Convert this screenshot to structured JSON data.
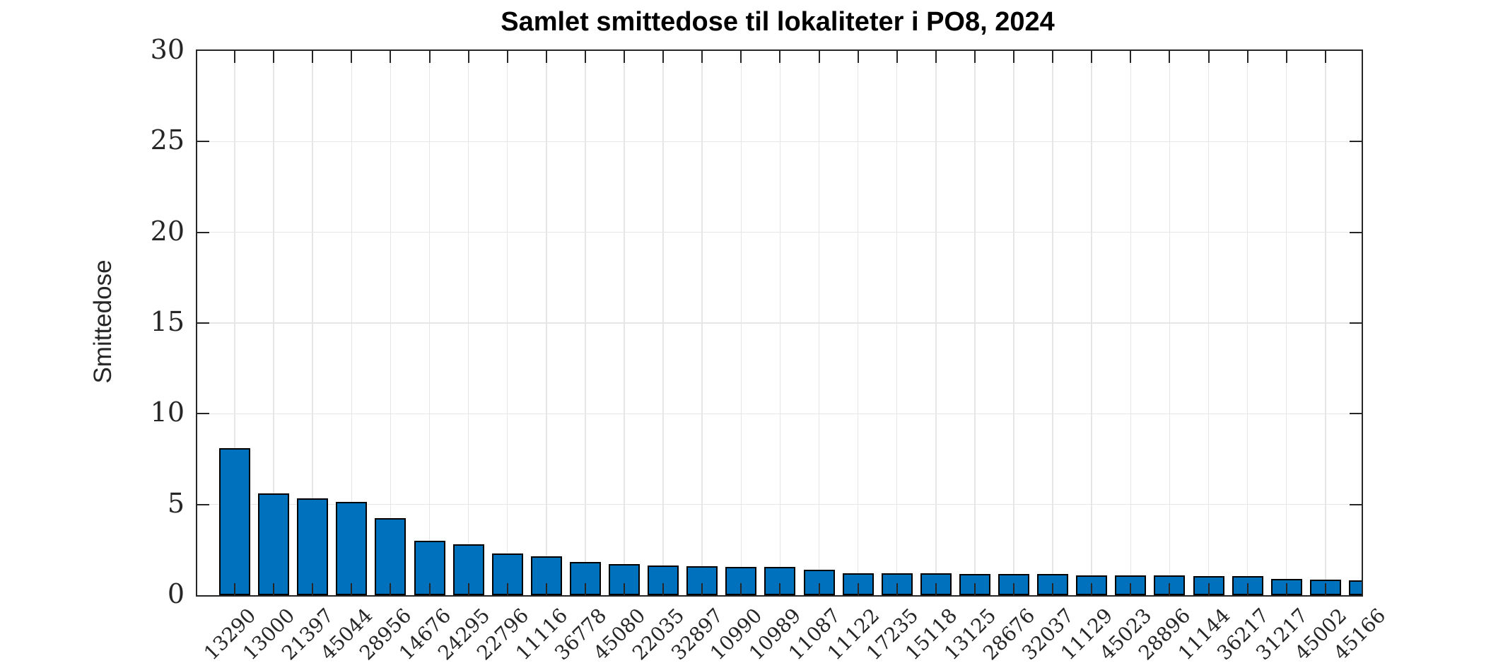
{
  "figure": {
    "title": "Samlet smittedose til lokaliteter i PO8, 2024",
    "ylabel": "Smittedose"
  },
  "chart_data": {
    "type": "bar",
    "title": "Samlet smittedose til lokaliteter i PO8, 2024",
    "xlabel": "",
    "ylabel": "Smittedose",
    "ylim": [
      0,
      30
    ],
    "yticks": [
      0,
      5,
      10,
      15,
      20,
      25,
      30
    ],
    "grid": true,
    "legend_position": "none",
    "bar_color": "#0072BD",
    "bar_edge_color": "#000000",
    "grid_color": "#E6E6E6",
    "axis_color": "#262626",
    "categories": [
      "13290",
      "13000",
      "21397",
      "45044",
      "28956",
      "14676",
      "24295",
      "22796",
      "11116",
      "36778",
      "45080",
      "22035",
      "32897",
      "10990",
      "10989",
      "11087",
      "11122",
      "17235",
      "15118",
      "13125",
      "28676",
      "32037",
      "11129",
      "45023",
      "28896",
      "11144",
      "36217",
      "31217",
      "45002",
      "45166"
    ],
    "values": [
      8.1,
      5.6,
      5.35,
      5.15,
      4.25,
      3.0,
      2.8,
      2.3,
      2.15,
      1.85,
      1.7,
      1.65,
      1.6,
      1.55,
      1.55,
      1.4,
      1.2,
      1.2,
      1.2,
      1.15,
      1.15,
      1.15,
      1.1,
      1.1,
      1.1,
      1.05,
      1.05,
      0.9,
      0.85,
      0.8
    ]
  }
}
